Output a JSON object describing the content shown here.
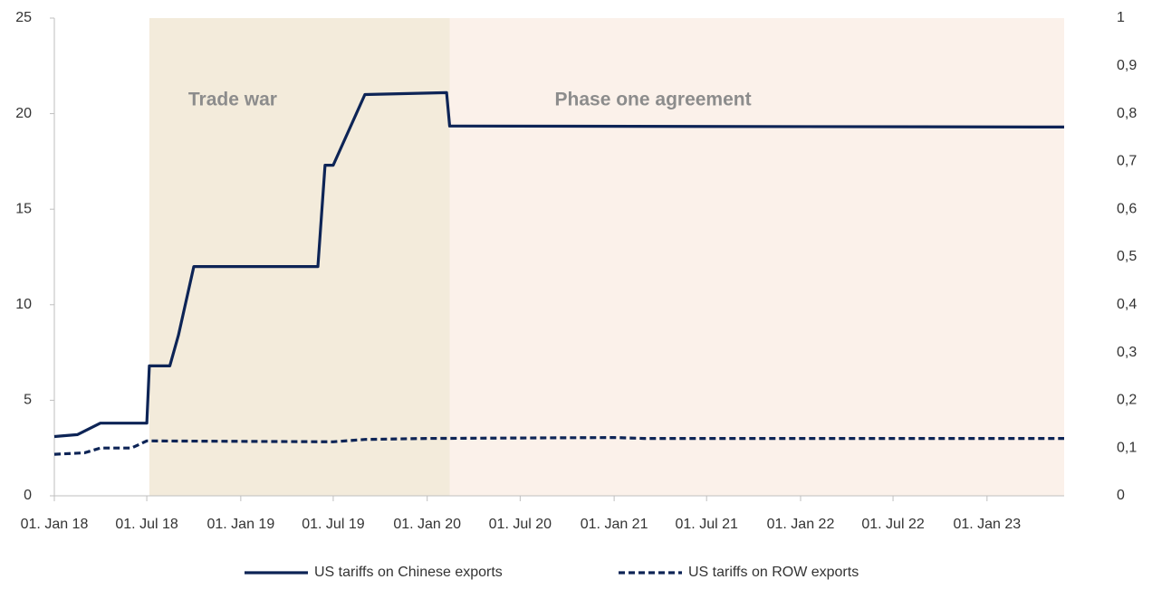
{
  "chart_data": {
    "type": "line",
    "xlim": [
      "2018-01-01",
      "2023-06-01"
    ],
    "xticks": [
      {
        "value": "2018-01-01",
        "label": "01. Jan 18"
      },
      {
        "value": "2018-07-01",
        "label": "01. Jul 18"
      },
      {
        "value": "2019-01-01",
        "label": "01. Jan 19"
      },
      {
        "value": "2019-07-01",
        "label": "01. Jul 19"
      },
      {
        "value": "2020-01-01",
        "label": "01. Jan 20"
      },
      {
        "value": "2020-07-01",
        "label": "01. Jul 20"
      },
      {
        "value": "2021-01-01",
        "label": "01. Jan 21"
      },
      {
        "value": "2021-07-01",
        "label": "01. Jul 21"
      },
      {
        "value": "2022-01-01",
        "label": "01. Jan 22"
      },
      {
        "value": "2022-07-01",
        "label": "01. Jul 22"
      },
      {
        "value": "2023-01-01",
        "label": "01. Jan 23"
      }
    ],
    "ylim": [
      0,
      25
    ],
    "yticks": [
      0,
      5,
      10,
      15,
      20,
      25
    ],
    "y2lim": [
      0,
      1
    ],
    "y2ticks": [
      0,
      {
        "value": 0.1,
        "label": "0,1"
      },
      {
        "value": 0.2,
        "label": "0,2"
      },
      {
        "value": 0.3,
        "label": "0,3"
      },
      {
        "value": 0.4,
        "label": "0,4"
      },
      {
        "value": 0.5,
        "label": "0,5"
      },
      {
        "value": 0.6,
        "label": "0,6"
      },
      {
        "value": 0.7,
        "label": "0,7"
      },
      {
        "value": 0.8,
        "label": "0,8"
      },
      {
        "value": 0.9,
        "label": "0,9"
      },
      1
    ],
    "shaded_periods": [
      {
        "label": "Trade war",
        "start": "2018-07-06",
        "end": "2020-02-14",
        "color": "#f3ebdb"
      },
      {
        "label": "Phase one agreement",
        "start": "2020-02-14",
        "end": "2023-06-01",
        "color": "#fbf1ea"
      }
    ],
    "series": [
      {
        "name": "US tariffs on Chinese exports",
        "color": "#0d2456",
        "dash": false,
        "x": [
          "2018-01-01",
          "2018-02-15",
          "2018-04-01",
          "2018-07-01",
          "2018-07-06",
          "2018-08-15",
          "2018-09-01",
          "2018-10-01",
          "2019-06-01",
          "2019-06-15",
          "2019-07-01",
          "2019-09-01",
          "2020-02-08",
          "2020-02-14",
          "2023-06-01"
        ],
        "values": [
          3.1,
          3.2,
          3.8,
          3.8,
          6.8,
          6.8,
          8.4,
          12,
          12,
          17.3,
          17.3,
          21,
          21.1,
          19.35,
          19.3
        ]
      },
      {
        "name": "US tariffs on ROW exports",
        "color": "#0d2456",
        "dash": true,
        "axis": "y2",
        "x": [
          "2018-01-01",
          "2018-03-01",
          "2018-04-01",
          "2018-06-01",
          "2018-07-01",
          "2019-07-01",
          "2019-09-01",
          "2020-01-01",
          "2021-01-01",
          "2021-03-01",
          "2023-06-01"
        ],
        "values": [
          0.087,
          0.09,
          0.1,
          0.1,
          0.115,
          0.113,
          0.118,
          0.12,
          0.122,
          0.12,
          0.12
        ]
      }
    ]
  }
}
